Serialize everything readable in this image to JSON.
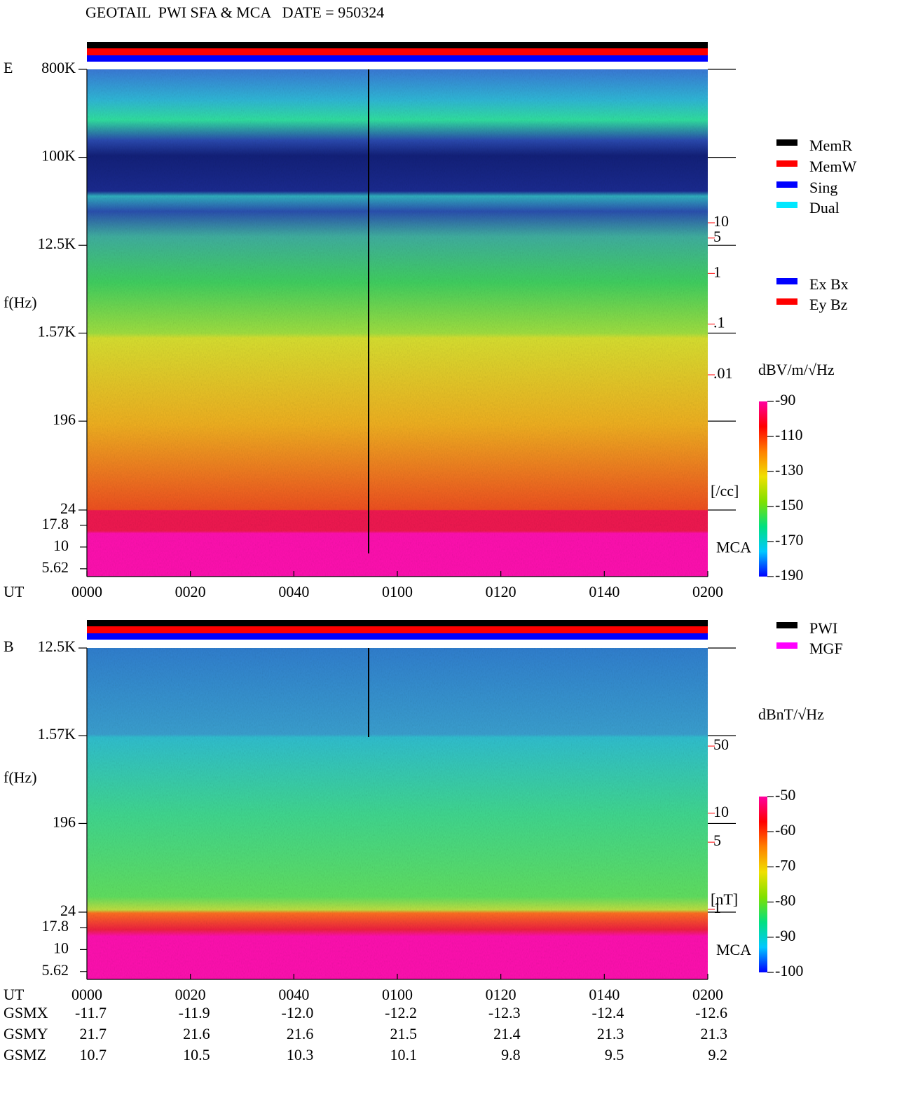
{
  "title": "GEOTAIL  PWI SFA & MCA   DATE = 950324",
  "chart_data": [
    {
      "type": "spectrogram",
      "panel_label": "E",
      "ylabel": "f(Hz)",
      "xlabel": "UT",
      "log": true,
      "ylim": [
        24,
        800000
      ],
      "yticks": [
        {
          "value": 800000,
          "label": "800K"
        },
        {
          "value": 100000,
          "label": "100K"
        },
        {
          "value": 12500,
          "label": "12.5K"
        },
        {
          "value": 1570,
          "label": "1.57K"
        },
        196,
        24
      ],
      "mca_label": "MCA",
      "mca_ylim": [
        4.57,
        26.7
      ],
      "mca_yticks": [
        17.8,
        10,
        5.62
      ],
      "xlim": [
        0,
        120
      ],
      "xticks": [
        {
          "value": 0,
          "label": "0000"
        },
        {
          "value": 20,
          "label": "0020"
        },
        {
          "value": 40,
          "label": "0040"
        },
        {
          "value": 60,
          "label": "0100"
        },
        {
          "value": 80,
          "label": "0120"
        },
        {
          "value": 100,
          "label": "0140"
        },
        {
          "value": 120,
          "label": "0200"
        }
      ],
      "y2_label": "[/cc]",
      "y2lim": [
        0.01,
        10
      ],
      "y2ticks": [
        10,
        5,
        1,
        {
          "value": 0.1,
          "label": ".1"
        },
        {
          "value": 0.01,
          "label": ".01"
        }
      ],
      "legend": [
        {
          "name": "MemR",
          "color": "#000000"
        },
        {
          "name": "MemW",
          "color": "#ff0000"
        },
        {
          "name": "Sing",
          "color": "#0000ff"
        },
        {
          "name": "Dual",
          "color": "#00e8ff"
        }
      ],
      "legend2": [
        {
          "name": "Ex Bx",
          "color": "#0000ff"
        },
        {
          "name": "Ey Bz",
          "color": "#ff0000"
        }
      ],
      "colorbar": {
        "label": "dBV/m/√Hz",
        "lim": [
          -190,
          -90
        ],
        "ticks": [
          -90,
          -110,
          -130,
          -150,
          -170,
          -190
        ],
        "colors": [
          "#0000ff",
          "#00c8ff",
          "#00e080",
          "#80e000",
          "#f0e000",
          "#ff8000",
          "#ff0000",
          "#ff00a0"
        ]
      }
    },
    {
      "type": "spectrogram",
      "panel_label": "B",
      "ylabel": "f(Hz)",
      "xlabel": "UT",
      "log": true,
      "ylim": [
        24,
        12500
      ],
      "yticks": [
        {
          "value": 12500,
          "label": "12.5K"
        },
        {
          "value": 1570,
          "label": "1.57K"
        },
        196,
        24
      ],
      "mca_label": "MCA",
      "mca_ylim": [
        4.57,
        26.7
      ],
      "mca_yticks": [
        17.8,
        10,
        5.62
      ],
      "xlim": [
        0,
        120
      ],
      "xticks": [
        {
          "value": 0,
          "label": "0000"
        },
        {
          "value": 20,
          "label": "0020"
        },
        {
          "value": 40,
          "label": "0040"
        },
        {
          "value": 60,
          "label": "0100"
        },
        {
          "value": 80,
          "label": "0120"
        },
        {
          "value": 100,
          "label": "0140"
        },
        {
          "value": 120,
          "label": "0200"
        }
      ],
      "y2_label": "[nT]",
      "y2lim": [
        1,
        50
      ],
      "y2ticks": [
        50,
        10,
        5,
        1
      ],
      "legend": [
        {
          "name": "PWI",
          "color": "#000000"
        },
        {
          "name": "MGF",
          "color": "#ff00ff"
        }
      ],
      "colorbar": {
        "label": "dBnT/√Hz",
        "lim": [
          -100,
          -50
        ],
        "ticks": [
          -50,
          -60,
          -70,
          -80,
          -90,
          -100
        ],
        "colors": [
          "#0000ff",
          "#00c8ff",
          "#00e080",
          "#80e000",
          "#f0e000",
          "#ff8000",
          "#ff0000",
          "#ff00a0"
        ]
      }
    }
  ],
  "orbit": {
    "rows": [
      {
        "name": "GSMX",
        "values": [
          "-11.7",
          "-11.9",
          "-12.0",
          "-12.2",
          "-12.3",
          "-12.4",
          "-12.6"
        ]
      },
      {
        "name": "GSMY",
        "values": [
          "21.7",
          "21.6",
          "21.6",
          "21.5",
          "21.4",
          "21.3",
          "21.3"
        ]
      },
      {
        "name": "GSMZ",
        "values": [
          "10.7",
          "10.5",
          "10.3",
          "10.1",
          "9.8",
          "9.5",
          "9.2"
        ]
      }
    ]
  }
}
